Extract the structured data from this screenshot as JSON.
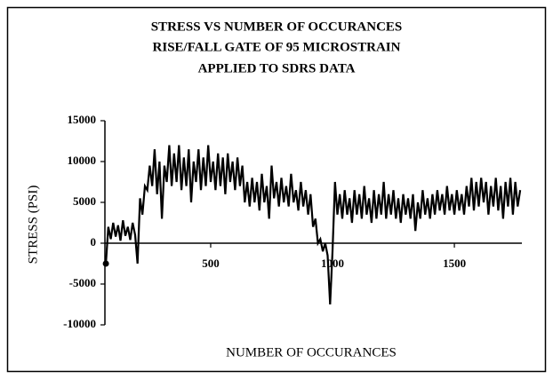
{
  "chart_data": {
    "type": "line",
    "title": "STRESS VS NUMBER OF OCCURANCES",
    "subtitle": [
      "RISE/FALL GATE OF 95 MICROSTRAIN",
      "APPLIED TO SDRS DATA"
    ],
    "x_label": "NUMBER OF OCCURANCES",
    "y_label": "STRESS (PSI)",
    "xlim": [
      66,
      1777
    ],
    "xticks": [
      500,
      1000,
      1500
    ],
    "ylim": [
      -10000,
      15000
    ],
    "yticks": [
      15000,
      10000,
      5000,
      0,
      -5000,
      -10000
    ],
    "color": "#000000",
    "x": [
      70,
      80,
      90,
      100,
      110,
      120,
      130,
      140,
      150,
      160,
      170,
      180,
      190,
      200,
      210,
      220,
      230,
      240,
      250,
      260,
      270,
      280,
      290,
      300,
      310,
      320,
      330,
      340,
      350,
      360,
      370,
      380,
      390,
      400,
      410,
      420,
      430,
      440,
      450,
      460,
      470,
      480,
      490,
      500,
      510,
      520,
      530,
      540,
      550,
      560,
      570,
      580,
      590,
      600,
      610,
      620,
      630,
      640,
      650,
      660,
      670,
      680,
      690,
      700,
      710,
      720,
      730,
      740,
      750,
      760,
      770,
      780,
      790,
      800,
      810,
      820,
      830,
      840,
      850,
      860,
      870,
      880,
      890,
      900,
      910,
      920,
      930,
      940,
      950,
      960,
      970,
      980,
      990,
      1000,
      1010,
      1020,
      1030,
      1040,
      1050,
      1060,
      1070,
      1080,
      1090,
      1100,
      1110,
      1120,
      1130,
      1140,
      1150,
      1160,
      1170,
      1180,
      1190,
      1200,
      1210,
      1220,
      1230,
      1240,
      1250,
      1260,
      1270,
      1280,
      1290,
      1300,
      1310,
      1320,
      1330,
      1340,
      1350,
      1360,
      1370,
      1380,
      1390,
      1400,
      1410,
      1420,
      1430,
      1440,
      1450,
      1460,
      1470,
      1480,
      1490,
      1500,
      1510,
      1520,
      1530,
      1540,
      1550,
      1560,
      1570,
      1580,
      1590,
      1600,
      1610,
      1620,
      1630,
      1640,
      1650,
      1660,
      1670,
      1680,
      1690,
      1700,
      1710,
      1720,
      1730,
      1740,
      1750,
      1760,
      1770
    ],
    "values": [
      -2500,
      2000,
      500,
      2500,
      800,
      2200,
      300,
      2800,
      900,
      2000,
      400,
      2500,
      1000,
      -2500,
      5500,
      3500,
      7000,
      6500,
      9500,
      7000,
      11500,
      6000,
      10000,
      3000,
      9500,
      7500,
      12000,
      7000,
      11000,
      7500,
      12000,
      6500,
      10500,
      7000,
      11500,
      5000,
      10000,
      7500,
      11500,
      6500,
      10500,
      7000,
      12000,
      7500,
      10000,
      6500,
      11000,
      7000,
      10500,
      6000,
      11000,
      7500,
      10000,
      6500,
      10500,
      7000,
      9500,
      5000,
      7500,
      4500,
      8000,
      5000,
      7500,
      4000,
      8500,
      5000,
      7000,
      3000,
      9500,
      5500,
      7500,
      4500,
      8000,
      5000,
      7000,
      4500,
      8500,
      5000,
      6500,
      4000,
      7500,
      4500,
      6500,
      3500,
      6000,
      2000,
      3000,
      0,
      500,
      -1000,
      0,
      -1500,
      -7500,
      -1000,
      7500,
      3500,
      6000,
      3000,
      6500,
      3500,
      5500,
      2500,
      6500,
      3500,
      6000,
      3000,
      7000,
      3500,
      5500,
      2500,
      6500,
      3000,
      6000,
      3500,
      7500,
      3000,
      6000,
      3500,
      6500,
      3000,
      5500,
      2500,
      6000,
      3500,
      5500,
      3000,
      6000,
      1500,
      5000,
      3000,
      6500,
      3500,
      5500,
      3000,
      6000,
      3500,
      6500,
      4000,
      6000,
      3500,
      7000,
      4000,
      6000,
      3500,
      6500,
      4000,
      6000,
      3500,
      7000,
      4500,
      8000,
      4000,
      7500,
      4500,
      8000,
      5000,
      7500,
      3500,
      7000,
      4500,
      8000,
      4000,
      7000,
      3000,
      7500,
      4500,
      8000,
      3500,
      7500,
      4500,
      6500
    ]
  }
}
